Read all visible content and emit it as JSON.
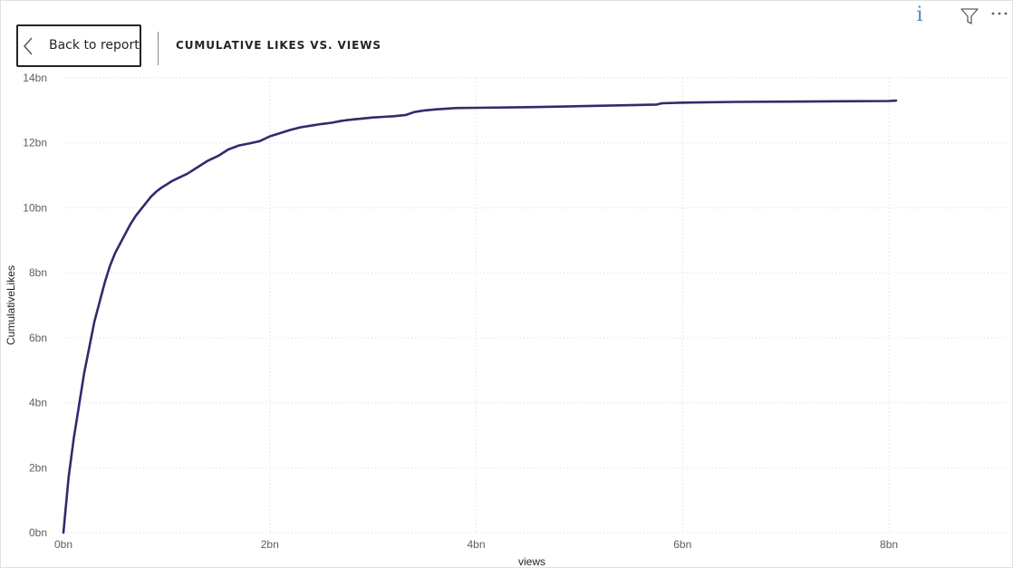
{
  "header": {
    "back_label": "Back to report",
    "title": "CUMULATIVE LIKES VS. VIEWS",
    "icons": {
      "back": "chevron-left-icon",
      "info": "info-icon",
      "filter": "filter-icon",
      "more": "more-options-icon"
    }
  },
  "colors": {
    "line": "#2d2d6e",
    "grid": "#d9d9d9",
    "tick": "#605e5c"
  },
  "chart_data": {
    "type": "line",
    "title": "CUMULATIVE LIKES VS. VIEWS",
    "xlabel": "views",
    "ylabel": "CumulativeLikes",
    "x_ticks": [
      "0bn",
      "2bn",
      "4bn",
      "6bn",
      "8bn"
    ],
    "y_ticks": [
      "0bn",
      "2bn",
      "4bn",
      "6bn",
      "8bn",
      "10bn",
      "12bn",
      "14bn"
    ],
    "xlim": [
      0,
      9.15
    ],
    "ylim": [
      0,
      14
    ],
    "grid": true,
    "x_unit": "bn",
    "y_unit": "bn",
    "series": [
      {
        "x": [
          0,
          0.05,
          0.1,
          0.15,
          0.2,
          0.25,
          0.3,
          0.35,
          0.4,
          0.45,
          0.5,
          0.55,
          0.6,
          0.65,
          0.7,
          0.75,
          0.8,
          0.85,
          0.9,
          0.95,
          1.0,
          1.05,
          1.1,
          1.2,
          1.3,
          1.4,
          1.5,
          1.6,
          1.7,
          1.8,
          1.9,
          2.0,
          2.1,
          2.2,
          2.3,
          2.4,
          2.5,
          2.6,
          2.7,
          2.8,
          2.9,
          3.0,
          3.1,
          3.2,
          3.32,
          3.4,
          3.5,
          3.6,
          3.7,
          3.8,
          4.0,
          4.5,
          5.0,
          5.5,
          5.75,
          5.8,
          6.0,
          6.5,
          7.0,
          7.5,
          8.0,
          8.07
        ],
        "y": [
          0,
          1.7,
          2.9,
          3.9,
          4.9,
          5.7,
          6.5,
          7.1,
          7.7,
          8.2,
          8.6,
          8.9,
          9.2,
          9.5,
          9.75,
          9.95,
          10.15,
          10.35,
          10.5,
          10.62,
          10.72,
          10.82,
          10.9,
          11.05,
          11.25,
          11.45,
          11.6,
          11.8,
          11.92,
          11.98,
          12.05,
          12.2,
          12.3,
          12.4,
          12.48,
          12.53,
          12.58,
          12.62,
          12.68,
          12.72,
          12.75,
          12.78,
          12.8,
          12.82,
          12.86,
          12.95,
          13.0,
          13.03,
          13.05,
          13.07,
          13.08,
          13.1,
          13.13,
          13.16,
          13.18,
          13.22,
          13.24,
          13.26,
          13.27,
          13.28,
          13.29,
          13.3
        ]
      }
    ]
  }
}
